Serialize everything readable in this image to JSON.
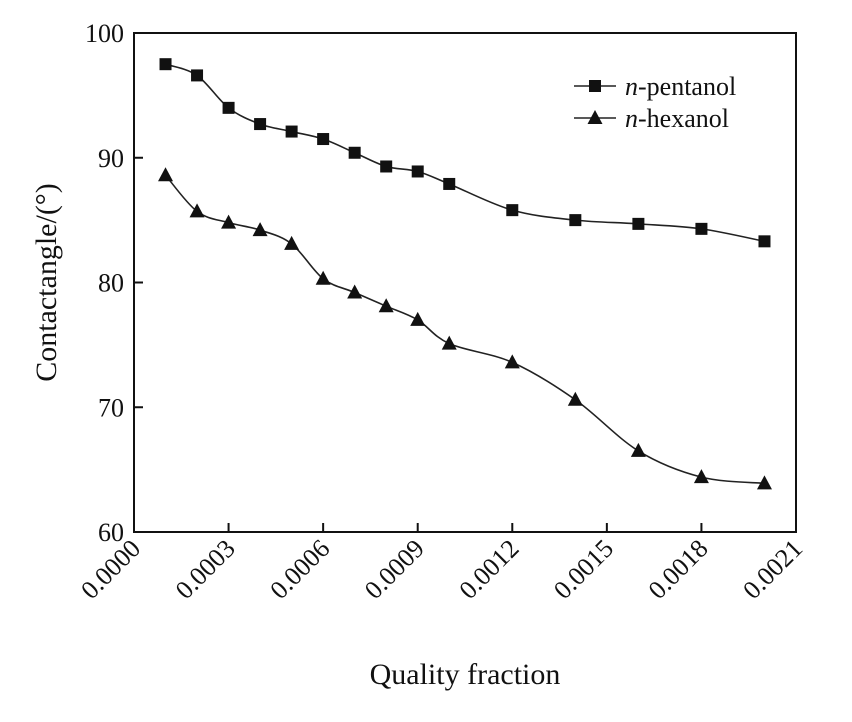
{
  "chart_data": {
    "type": "line",
    "xlabel": "Quality fraction",
    "ylabel": "Contactangle/(°)",
    "xlim": [
      0.0,
      0.0021
    ],
    "ylim": [
      60,
      100
    ],
    "xticks": [
      "0.0000",
      "0.0003",
      "0.0006",
      "0.0009",
      "0.0012",
      "0.0015",
      "0.0018",
      "0.0021"
    ],
    "yticks": [
      "60",
      "70",
      "80",
      "90",
      "100"
    ],
    "grid": false,
    "legend_position": "top-right",
    "series": [
      {
        "name_prefix": "n",
        "name_suffix": "-pentanol",
        "marker": "square",
        "x": [
          0.0001,
          0.0002,
          0.0003,
          0.0004,
          0.0005,
          0.0006,
          0.0007,
          0.0008,
          0.0009,
          0.001,
          0.0012,
          0.0014,
          0.0016,
          0.0018,
          0.002
        ],
        "values": [
          97.5,
          96.6,
          94.0,
          92.7,
          92.1,
          91.5,
          90.4,
          89.3,
          88.9,
          87.9,
          85.8,
          85.0,
          84.7,
          84.3,
          83.3
        ]
      },
      {
        "name_prefix": "n",
        "name_suffix": "-hexanol",
        "marker": "triangle",
        "x": [
          0.0001,
          0.0002,
          0.0003,
          0.0004,
          0.0005,
          0.0006,
          0.0007,
          0.0008,
          0.0009,
          0.001,
          0.0012,
          0.0014,
          0.0016,
          0.0018,
          0.002
        ],
        "values": [
          88.6,
          85.7,
          84.8,
          84.2,
          83.1,
          80.3,
          79.2,
          78.1,
          77.0,
          75.1,
          73.6,
          70.6,
          66.5,
          64.4,
          63.9
        ]
      }
    ]
  }
}
